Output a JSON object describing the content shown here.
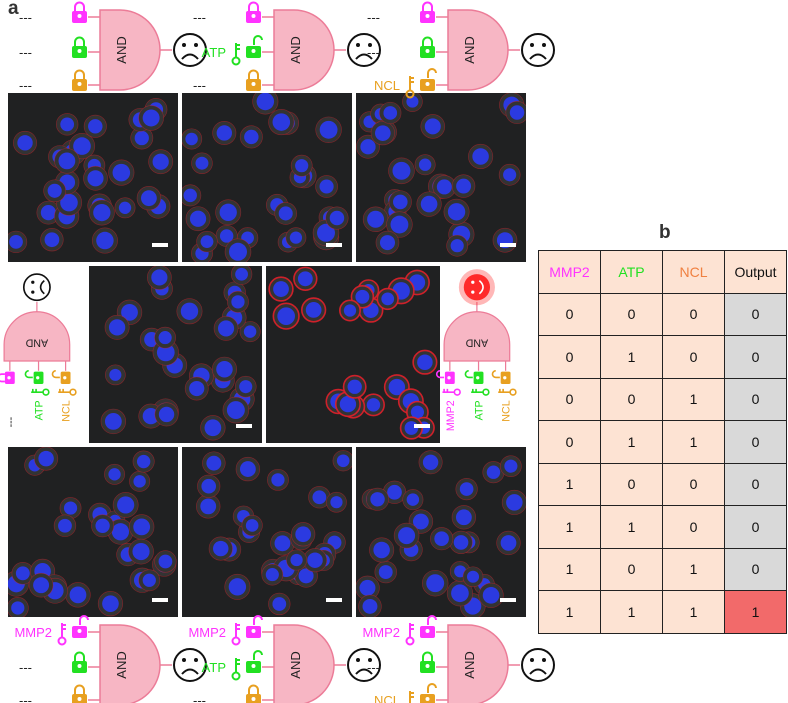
{
  "panel_a_label": "a",
  "panel_b_label": "b",
  "colors": {
    "MMP2": "#ff33ff",
    "ATP": "#22e022",
    "NCL": "#e8a020",
    "gate_fill": "#f7b6c4",
    "gate_stroke": "#ec7c98",
    "cell_nucleus": "#2a3cff",
    "cell_membrane": "#e0202a",
    "high_output": "#f26a6a",
    "zero_output": "#d9d9d9",
    "cell_bg": "#fde3d3"
  },
  "gate_label": "AND",
  "gates": [
    {
      "id": "none",
      "inputs": [
        {
          "label": "---",
          "key": false
        },
        {
          "label": "---",
          "key": false
        },
        {
          "label": "---",
          "key": false
        }
      ],
      "face": "sad"
    },
    {
      "id": "atp",
      "inputs": [
        {
          "label": "---",
          "key": false
        },
        {
          "label": "ATP",
          "key": true
        },
        {
          "label": "---",
          "key": false
        }
      ],
      "face": "sad"
    },
    {
      "id": "ncl",
      "inputs": [
        {
          "label": "---",
          "key": false
        },
        {
          "label": "---",
          "key": false
        },
        {
          "label": "NCL",
          "key": true
        }
      ],
      "face": "sad"
    },
    {
      "id": "atp-ncl",
      "inputs": [
        {
          "label": "---",
          "key": false
        },
        {
          "label": "ATP",
          "key": true
        },
        {
          "label": "NCL",
          "key": true
        }
      ],
      "face": "sad"
    },
    {
      "id": "all",
      "inputs": [
        {
          "label": "MMP2",
          "key": true
        },
        {
          "label": "ATP",
          "key": true
        },
        {
          "label": "NCL",
          "key": true
        }
      ],
      "face": "happy"
    },
    {
      "id": "mmp2",
      "inputs": [
        {
          "label": "MMP2",
          "key": true
        },
        {
          "label": "---",
          "key": false
        },
        {
          "label": "---",
          "key": false
        }
      ],
      "face": "sad"
    },
    {
      "id": "mmp2-atp",
      "inputs": [
        {
          "label": "MMP2",
          "key": true
        },
        {
          "label": "ATP",
          "key": true
        },
        {
          "label": "---",
          "key": false
        }
      ],
      "face": "sad"
    },
    {
      "id": "mmp2-ncl",
      "inputs": [
        {
          "label": "MMP2",
          "key": true
        },
        {
          "label": "---",
          "key": false
        },
        {
          "label": "NCL",
          "key": true
        }
      ],
      "face": "sad"
    }
  ],
  "truth_table": {
    "headers": [
      "MMP2",
      "ATP",
      "NCL",
      "Output"
    ],
    "rows": [
      [
        "0",
        "0",
        "0",
        "0"
      ],
      [
        "0",
        "1",
        "0",
        "0"
      ],
      [
        "0",
        "0",
        "1",
        "0"
      ],
      [
        "0",
        "1",
        "1",
        "0"
      ],
      [
        "1",
        "0",
        "0",
        "0"
      ],
      [
        "1",
        "1",
        "0",
        "0"
      ],
      [
        "1",
        "0",
        "1",
        "0"
      ],
      [
        "1",
        "1",
        "1",
        "1"
      ]
    ]
  }
}
